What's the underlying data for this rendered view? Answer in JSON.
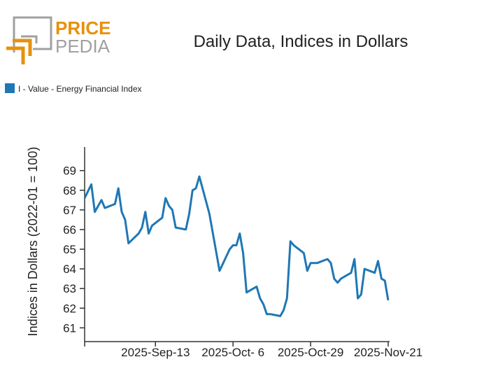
{
  "logo": {
    "line1": "PRICE",
    "line2": "PEDIA",
    "orange": "#e8900c",
    "gray": "#a0a0a0"
  },
  "chart_data": {
    "type": "line",
    "title": "Daily Data, Indices in Dollars",
    "ylabel": "Indices in Dollars (2022-01 = 100)",
    "xlabel": "",
    "ylim": [
      60.3,
      70.2
    ],
    "xlim": [
      "2025-08-23",
      "2025-11-21"
    ],
    "yticks": [
      61,
      62,
      63,
      64,
      65,
      66,
      67,
      68,
      69
    ],
    "xticks": [
      {
        "date": "2025-09-13",
        "label": "2025-Sep-13"
      },
      {
        "date": "2025-10-06",
        "label": "2025-Oct- 6"
      },
      {
        "date": "2025-10-29",
        "label": "2025-Oct-29"
      },
      {
        "date": "2025-11-21",
        "label": "2025-Nov-21"
      }
    ],
    "grid": false,
    "legend_position": "top-left",
    "series": [
      {
        "name": "I - Value - Energy Financial Index",
        "color": "#1f77b4",
        "points": [
          [
            "2025-08-23",
            67.6
          ],
          [
            "2025-08-25",
            68.3
          ],
          [
            "2025-08-26",
            66.9
          ],
          [
            "2025-08-27",
            67.2
          ],
          [
            "2025-08-28",
            67.5
          ],
          [
            "2025-08-29",
            67.1
          ],
          [
            "2025-09-01",
            67.3
          ],
          [
            "2025-09-02",
            68.1
          ],
          [
            "2025-09-03",
            66.9
          ],
          [
            "2025-09-04",
            66.5
          ],
          [
            "2025-09-05",
            65.3
          ],
          [
            "2025-09-08",
            65.8
          ],
          [
            "2025-09-09",
            66.1
          ],
          [
            "2025-09-10",
            66.9
          ],
          [
            "2025-09-11",
            65.8
          ],
          [
            "2025-09-12",
            66.2
          ],
          [
            "2025-09-15",
            66.6
          ],
          [
            "2025-09-16",
            67.6
          ],
          [
            "2025-09-17",
            67.2
          ],
          [
            "2025-09-18",
            67.0
          ],
          [
            "2025-09-19",
            66.1
          ],
          [
            "2025-09-22",
            66.0
          ],
          [
            "2025-09-23",
            66.8
          ],
          [
            "2025-09-24",
            68.0
          ],
          [
            "2025-09-25",
            68.1
          ],
          [
            "2025-09-26",
            68.7
          ],
          [
            "2025-09-29",
            66.8
          ],
          [
            "2025-10-02",
            63.9
          ],
          [
            "2025-10-05",
            65.0
          ],
          [
            "2025-10-06",
            65.2
          ],
          [
            "2025-10-07",
            65.2
          ],
          [
            "2025-10-08",
            65.8
          ],
          [
            "2025-10-09",
            64.8
          ],
          [
            "2025-10-10",
            62.8
          ],
          [
            "2025-10-13",
            63.1
          ],
          [
            "2025-10-14",
            62.5
          ],
          [
            "2025-10-15",
            62.2
          ],
          [
            "2025-10-16",
            61.7
          ],
          [
            "2025-10-17",
            61.7
          ],
          [
            "2025-10-20",
            61.6
          ],
          [
            "2025-10-21",
            61.9
          ],
          [
            "2025-10-22",
            62.5
          ],
          [
            "2025-10-23",
            65.4
          ],
          [
            "2025-10-24",
            65.2
          ],
          [
            "2025-10-27",
            64.8
          ],
          [
            "2025-10-28",
            63.9
          ],
          [
            "2025-10-29",
            64.3
          ],
          [
            "2025-10-31",
            64.3
          ],
          [
            "2025-11-03",
            64.5
          ],
          [
            "2025-11-04",
            64.3
          ],
          [
            "2025-11-05",
            63.5
          ],
          [
            "2025-11-06",
            63.3
          ],
          [
            "2025-11-07",
            63.5
          ],
          [
            "2025-11-10",
            63.8
          ],
          [
            "2025-11-11",
            64.5
          ],
          [
            "2025-11-12",
            62.5
          ],
          [
            "2025-11-13",
            62.7
          ],
          [
            "2025-11-14",
            64.0
          ],
          [
            "2025-11-17",
            63.8
          ],
          [
            "2025-11-18",
            64.4
          ],
          [
            "2025-11-19",
            63.5
          ],
          [
            "2025-11-20",
            63.4
          ],
          [
            "2025-11-21",
            62.4
          ]
        ]
      }
    ]
  }
}
